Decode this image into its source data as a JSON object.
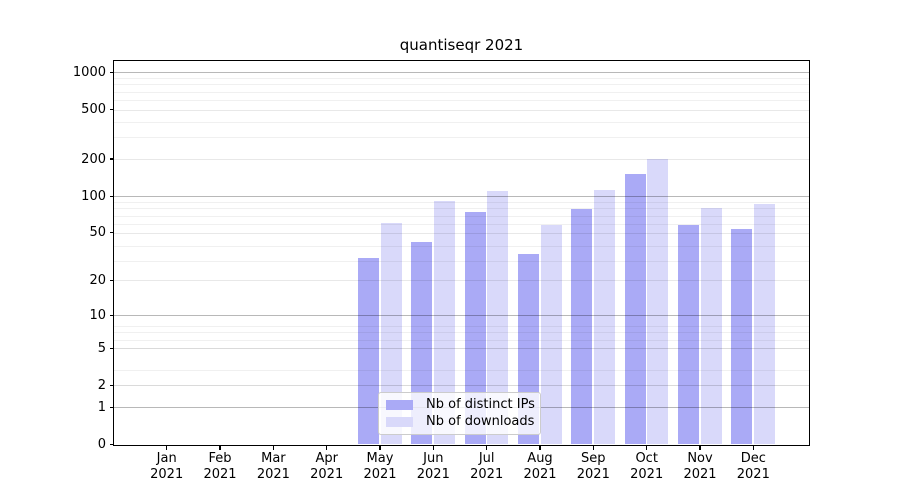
{
  "chart_data": {
    "type": "bar",
    "title": "quantiseqr 2021",
    "categories": [
      "Jan 2021",
      "Feb 2021",
      "Mar 2021",
      "Apr 2021",
      "May 2021",
      "Jun 2021",
      "Jul 2021",
      "Aug 2021",
      "Sep 2021",
      "Oct 2021",
      "Nov 2021",
      "Dec 2021"
    ],
    "months": [
      "Jan",
      "Feb",
      "Mar",
      "Apr",
      "May",
      "Jun",
      "Jul",
      "Aug",
      "Sep",
      "Oct",
      "Nov",
      "Dec"
    ],
    "year_label": "2021",
    "series": [
      {
        "name": "Nb of distinct IPs",
        "color": "#aaaaf6",
        "values": [
          0,
          0,
          0,
          0,
          31,
          42,
          74,
          33,
          78,
          150,
          58,
          54
        ]
      },
      {
        "name": "Nb of downloads",
        "color": "#d9d9fa",
        "values": [
          0,
          0,
          0,
          0,
          60,
          90,
          110,
          58,
          112,
          200,
          80,
          85
        ]
      }
    ],
    "xlabel": "",
    "ylabel": "",
    "yticks": [
      0,
      1,
      2,
      5,
      10,
      20,
      50,
      100,
      200,
      500,
      1000
    ],
    "y_scale": "log1p",
    "ylim": [
      0,
      1240
    ],
    "grid": true,
    "legend_position": "lower center",
    "background": "#ffffff",
    "axis_color": "#000000"
  }
}
